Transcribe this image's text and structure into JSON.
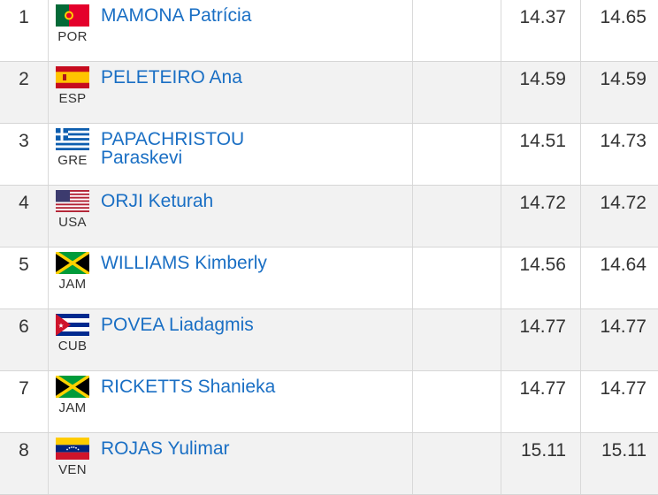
{
  "results": [
    {
      "rank": "1",
      "flag": "portugal-flag-icon",
      "country": "POR",
      "name_line1": "MAMONA Patrícia",
      "name_line2": "",
      "time1": "14.37",
      "time2": "14.65"
    },
    {
      "rank": "2",
      "flag": "spain-flag-icon",
      "country": "ESP",
      "name_line1": "PELETEIRO Ana",
      "name_line2": "",
      "time1": "14.59",
      "time2": "14.59"
    },
    {
      "rank": "3",
      "flag": "greece-flag-icon",
      "country": "GRE",
      "name_line1": "PAPACHRISTOU",
      "name_line2": "Paraskevi",
      "time1": "14.51",
      "time2": "14.73"
    },
    {
      "rank": "4",
      "flag": "usa-flag-icon",
      "country": "USA",
      "name_line1": "ORJI Keturah",
      "name_line2": "",
      "time1": "14.72",
      "time2": "14.72"
    },
    {
      "rank": "5",
      "flag": "jamaica-flag-icon",
      "country": "JAM",
      "name_line1": "WILLIAMS Kimberly",
      "name_line2": "",
      "time1": "14.56",
      "time2": "14.64"
    },
    {
      "rank": "6",
      "flag": "cuba-flag-icon",
      "country": "CUB",
      "name_line1": "POVEA Liadagmis",
      "name_line2": "",
      "time1": "14.77",
      "time2": "14.77"
    },
    {
      "rank": "7",
      "flag": "jamaica-flag-icon",
      "country": "JAM",
      "name_line1": "RICKETTS Shanieka",
      "name_line2": "",
      "time1": "14.77",
      "time2": "14.77"
    },
    {
      "rank": "8",
      "flag": "venezuela-flag-icon",
      "country": "VEN",
      "name_line1": "ROJAS Yulimar",
      "name_line2": "",
      "time1": "15.11",
      "time2": "15.11"
    }
  ],
  "colors": {
    "link": "#1a6fc4",
    "alt_row": "#f2f2f2",
    "border": "#d6d6d6"
  }
}
